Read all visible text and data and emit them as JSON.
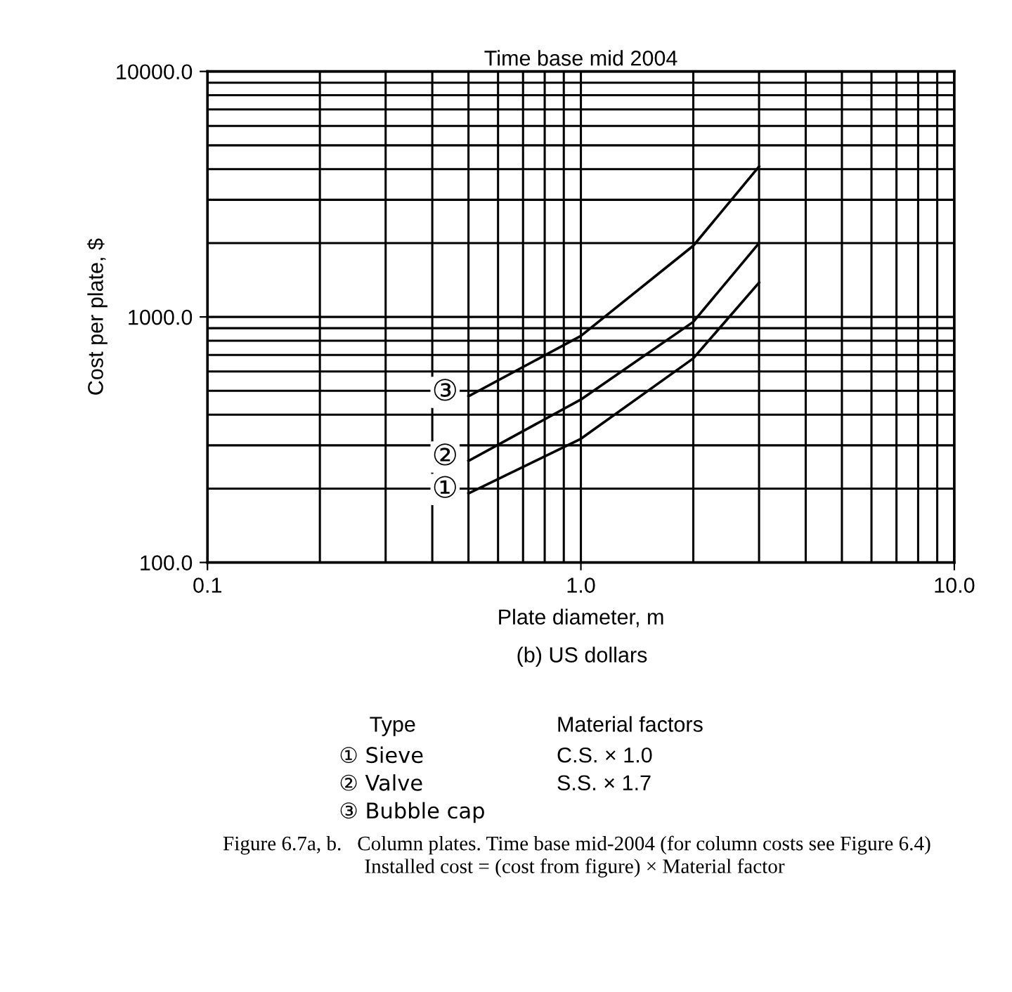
{
  "chart_data": {
    "type": "line",
    "title": "Time base mid 2004",
    "xlabel": "Plate diameter, m",
    "ylabel": "Cost per plate, $",
    "legend_title": "Type",
    "log": "xy",
    "grid": true,
    "marker": "none",
    "line_style": "solid",
    "xlim": [
      0.1,
      10
    ],
    "xticks": [
      {
        "value": 0.1,
        "label": "0.1"
      },
      {
        "value": 1,
        "label": "1.0"
      },
      {
        "value": 10,
        "label": "10.0"
      }
    ],
    "ylim": [
      100,
      10000
    ],
    "yticks": [
      {
        "value": 100,
        "label": "100.0"
      },
      {
        "value": 1000,
        "label": "1000.0"
      },
      {
        "value": 10000,
        "label": "10000.0"
      }
    ],
    "x": [
      0.5,
      1,
      2,
      3
    ],
    "series": [
      {
        "name": "Sieve",
        "color": "#000000",
        "values": [
          191,
          319,
          678,
          1380
        ]
      },
      {
        "name": "Valve",
        "color": "#000000",
        "values": [
          259,
          461,
          955,
          2000
        ]
      },
      {
        "name": "Bubble cap",
        "color": "#000000",
        "values": [
          475,
          837,
          1950,
          4100
        ]
      }
    ],
    "annotations": [
      "①",
      "②",
      "③",
      "(b) US dollars",
      "Material factors",
      "C.S. × 1.0",
      "S.S. × 1.7",
      "Figure 6.7a, b.   Column plates. Time base mid-2004 (for column costs see Figure 6.4)",
      "Installed cost = (cost from figure) × Material factor"
    ]
  }
}
